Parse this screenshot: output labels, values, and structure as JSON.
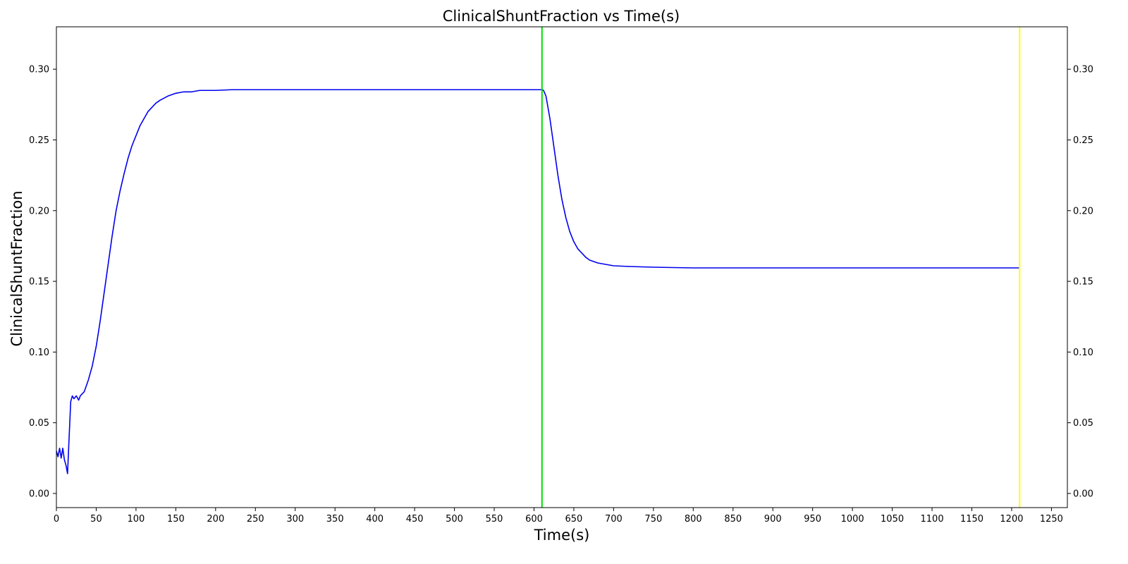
{
  "chart_data": {
    "type": "line",
    "title": "ClinicalShuntFraction vs Time(s)",
    "xlabel": "Time(s)",
    "ylabel": "ClinicalShuntFraction",
    "xlim": [
      0,
      1270
    ],
    "ylim": [
      -0.01,
      0.33
    ],
    "x_ticks": [
      0,
      50,
      100,
      150,
      200,
      250,
      300,
      350,
      400,
      450,
      500,
      550,
      600,
      650,
      700,
      750,
      800,
      850,
      900,
      950,
      1000,
      1050,
      1100,
      1150,
      1200,
      1250
    ],
    "y_ticks": [
      0.0,
      0.05,
      0.1,
      0.15,
      0.2,
      0.25,
      0.3
    ],
    "y_tick_labels": [
      "0.00",
      "0.05",
      "0.10",
      "0.15",
      "0.20",
      "0.25",
      "0.30"
    ],
    "right_axis_duplicate": true,
    "grid": false,
    "legend": "none",
    "series": [
      {
        "color": "#0000ee",
        "x": [
          0,
          2,
          4,
          6,
          8,
          10,
          12,
          14,
          16,
          18,
          20,
          22,
          25,
          28,
          30,
          35,
          40,
          45,
          50,
          55,
          60,
          65,
          70,
          75,
          80,
          85,
          90,
          95,
          100,
          105,
          110,
          115,
          120,
          125,
          130,
          140,
          150,
          160,
          170,
          180,
          190,
          200,
          220,
          250,
          300,
          400,
          500,
          600,
          610,
          612,
          615,
          620,
          625,
          630,
          635,
          640,
          645,
          650,
          655,
          660,
          665,
          670,
          675,
          680,
          690,
          700,
          720,
          750,
          800,
          900,
          1000,
          1100,
          1200,
          1210
        ],
        "y": [
          0.03,
          0.026,
          0.032,
          0.025,
          0.032,
          0.024,
          0.02,
          0.014,
          0.04,
          0.065,
          0.069,
          0.067,
          0.069,
          0.066,
          0.069,
          0.072,
          0.08,
          0.09,
          0.104,
          0.122,
          0.142,
          0.162,
          0.182,
          0.2,
          0.214,
          0.226,
          0.237,
          0.246,
          0.253,
          0.26,
          0.265,
          0.27,
          0.273,
          0.276,
          0.278,
          0.281,
          0.283,
          0.284,
          0.284,
          0.285,
          0.285,
          0.285,
          0.2855,
          0.2855,
          0.2855,
          0.2855,
          0.2855,
          0.2855,
          0.2855,
          0.285,
          0.281,
          0.265,
          0.245,
          0.225,
          0.208,
          0.195,
          0.185,
          0.178,
          0.173,
          0.17,
          0.167,
          0.165,
          0.164,
          0.163,
          0.162,
          0.161,
          0.1605,
          0.16,
          0.1595,
          0.1595,
          0.1595,
          0.1595,
          0.1595,
          0.1595
        ]
      }
    ],
    "vlines": [
      {
        "x": 610,
        "color": "#00dd00"
      },
      {
        "x": 1210,
        "color": "#ffff00"
      }
    ]
  }
}
